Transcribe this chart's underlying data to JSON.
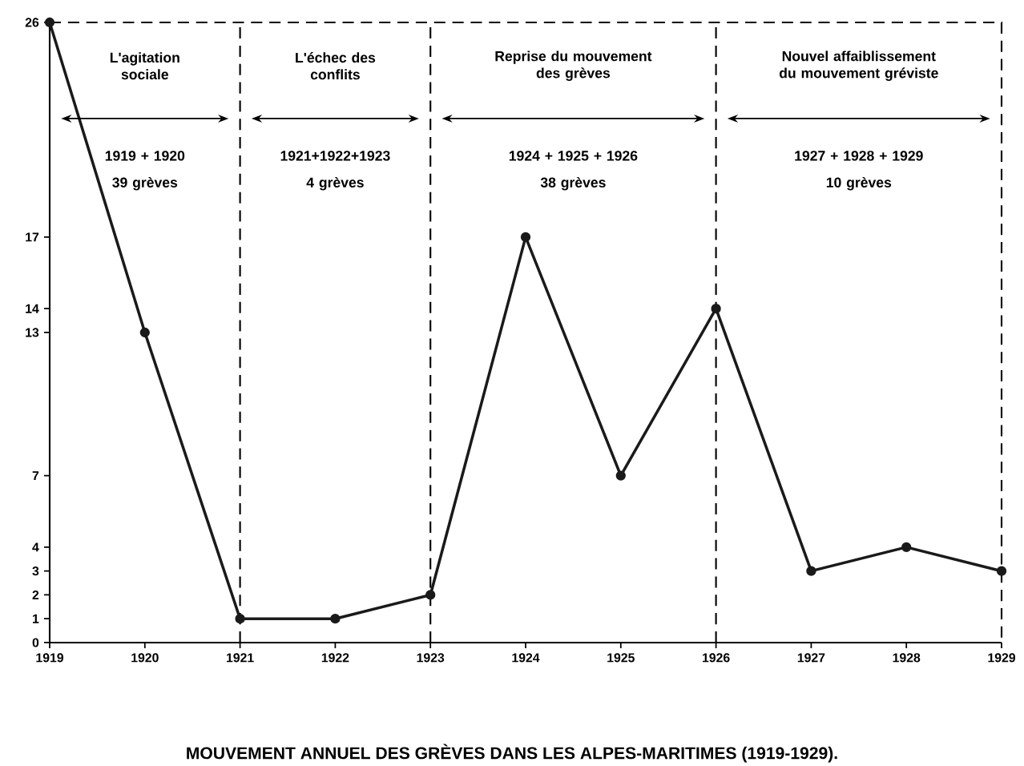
{
  "chart_data": {
    "type": "line",
    "title": "MOUVEMENT ANNUEL DES GRÈVES DANS LES ALPES-MARITIMES (1919-1929).",
    "x": [
      1919,
      1920,
      1921,
      1922,
      1923,
      1924,
      1925,
      1926,
      1927,
      1928,
      1929
    ],
    "series": [
      {
        "color": "#1a1a1a",
        "values": [
          26,
          13,
          1,
          1,
          2,
          17,
          7,
          14,
          3,
          4,
          3
        ]
      }
    ],
    "xlim": [
      1919,
      1929
    ],
    "ylim": [
      0,
      26
    ],
    "xticks": [
      1919,
      1920,
      1921,
      1922,
      1923,
      1924,
      1925,
      1926,
      1927,
      1928,
      1929
    ],
    "yticks": [
      0,
      1,
      2,
      3,
      4,
      7,
      13,
      14,
      17,
      26
    ],
    "marker": "circle",
    "line_style": "solid",
    "ref_lines": [
      {
        "axis": "x",
        "value": 1921,
        "line_style": "dashed"
      },
      {
        "axis": "x",
        "value": 1923,
        "line_style": "dashed"
      },
      {
        "axis": "x",
        "value": 1926,
        "line_style": "dashed"
      }
    ],
    "annotations": [
      "L'agitation sociale",
      "1919 + 1920",
      "39 grèves",
      "L'échec des conflits",
      "1921+1922+1923",
      "4 grèves",
      "Reprise du mouvement des grèves",
      "1924 + 1925 + 1926",
      "38 grèves",
      "Nouvel affaiblissement du mouvement gréviste",
      "1927 + 1928 + 1929",
      "10 grèves"
    ]
  }
}
